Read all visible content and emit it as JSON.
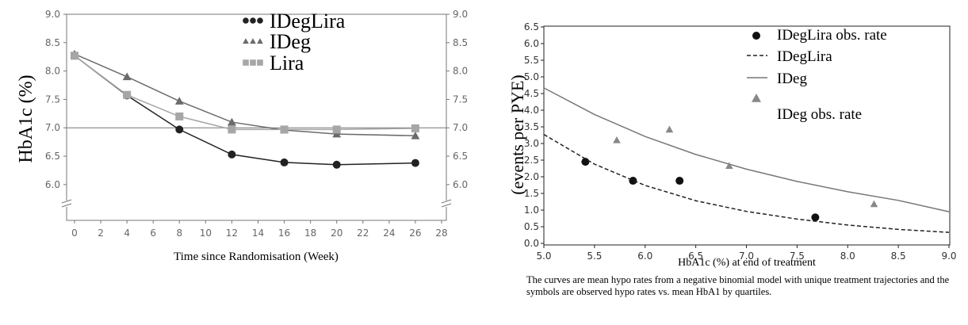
{
  "chart_data": [
    {
      "type": "line",
      "title": "",
      "xlabel": "Time since Randomisation (Week)",
      "ylabel": "HbA1c (%)",
      "x_ticks": [
        0,
        2,
        4,
        6,
        8,
        10,
        12,
        14,
        16,
        18,
        20,
        22,
        24,
        26,
        28
      ],
      "y_ticks": [
        "6.0",
        "6.5",
        "7.0",
        "7.5",
        "8.0",
        "8.5",
        "9.0"
      ],
      "xlim": [
        0,
        28
      ],
      "ylim": [
        5.7,
        9.0
      ],
      "y_axis_break": true,
      "reference_line_y": 7.0,
      "legend_position": "top-center",
      "series": [
        {
          "name": "IDegLira",
          "marker": "circle",
          "color": "#222222",
          "x": [
            0,
            4,
            8,
            12,
            16,
            20,
            26
          ],
          "y": [
            8.27,
            7.57,
            6.97,
            6.53,
            6.39,
            6.35,
            6.38
          ]
        },
        {
          "name": "IDeg",
          "marker": "triangle",
          "color": "#6b6b6b",
          "x": [
            0,
            4,
            8,
            12,
            16,
            20,
            26
          ],
          "y": [
            8.3,
            7.9,
            7.47,
            7.1,
            6.96,
            6.89,
            6.86
          ]
        },
        {
          "name": "Lira",
          "marker": "square",
          "color": "#a6a6a6",
          "x": [
            0,
            4,
            8,
            12,
            16,
            20,
            26
          ],
          "y": [
            8.27,
            7.58,
            7.2,
            6.97,
            6.97,
            6.97,
            6.99
          ]
        }
      ]
    },
    {
      "type": "scatter",
      "title": "",
      "xlabel": "HbA1c (%) at end of treatment",
      "ylabel": "(events per PYE)",
      "x_ticks": [
        "5.0",
        "5.5",
        "6.0",
        "6.5",
        "7.0",
        "7.5",
        "8.0",
        "8.5",
        "9.0"
      ],
      "y_ticks": [
        "0.0",
        "0.5",
        "1.0",
        "1.5",
        "2.0",
        "2.5",
        "3.0",
        "3.5",
        "4.0",
        "4.5",
        "5.0",
        "5.5",
        "6.0",
        "6.5"
      ],
      "xlim": [
        5.0,
        9.0
      ],
      "ylim": [
        0.0,
        6.5
      ],
      "legend_position": "top-right",
      "legend": [
        {
          "name": "IDegLira obs. rate",
          "kind": "circle"
        },
        {
          "name": "IDegLira",
          "kind": "dashed-line"
        },
        {
          "name": "IDeg",
          "kind": "solid-line"
        },
        {
          "name": "IDeg obs. rate",
          "kind": "triangle"
        }
      ],
      "series": [
        {
          "name": "IDegLira obs. rate",
          "marker": "circle",
          "color": "#111111",
          "x": [
            5.41,
            5.88,
            6.34,
            7.68
          ],
          "y": [
            2.45,
            1.88,
            1.88,
            0.78
          ]
        },
        {
          "name": "IDegLira",
          "line": "dashed",
          "color": "#222222",
          "x": [
            5.0,
            5.5,
            6.0,
            6.5,
            7.0,
            7.5,
            8.0,
            8.5,
            9.0
          ],
          "y": [
            3.27,
            2.38,
            1.74,
            1.28,
            0.96,
            0.73,
            0.55,
            0.42,
            0.33
          ]
        },
        {
          "name": "IDeg",
          "line": "solid",
          "color": "#777777",
          "x": [
            5.0,
            5.5,
            6.0,
            6.5,
            7.0,
            7.5,
            8.0,
            8.5,
            9.0
          ],
          "y": [
            4.67,
            3.87,
            3.21,
            2.67,
            2.23,
            1.86,
            1.55,
            1.29,
            0.95
          ]
        },
        {
          "name": "IDeg obs. rate",
          "marker": "triangle",
          "color": "#888888",
          "x": [
            5.72,
            6.24,
            6.83,
            8.26
          ],
          "y": [
            3.1,
            3.42,
            2.33,
            1.18
          ]
        }
      ]
    }
  ],
  "caption": "The curves are mean hypo rates from a negative binomial model with unique treatment trajectories and the symbols are observed hypo rates vs. mean HbA1 by quartiles."
}
